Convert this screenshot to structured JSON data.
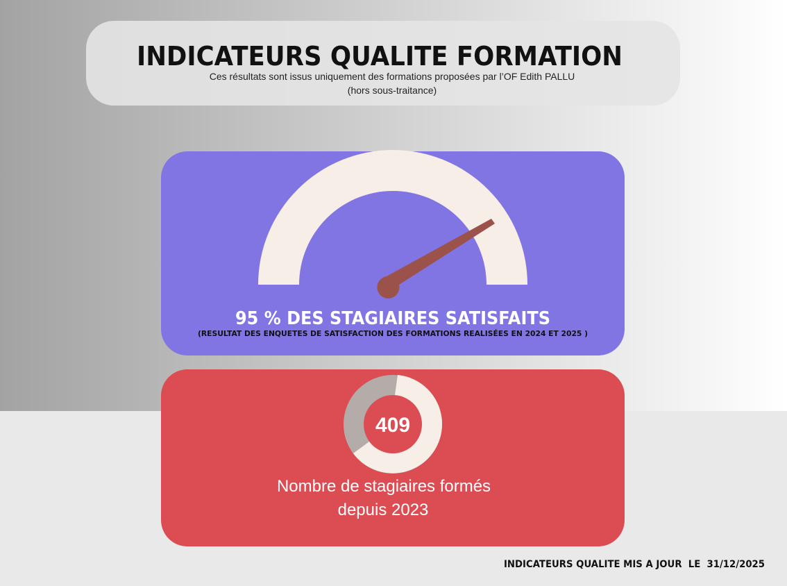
{
  "header": {
    "title": "INDICATEURS QUALITE FORMATION",
    "subtitle": [
      "Ces résultats sont issus uniquement des formations proposées par l’OF Edith PALLU",
      "(hors sous-traitance)"
    ]
  },
  "satisfaction": {
    "headline": "95 % DES STAGIAIRES SATISFAITS",
    "note": "(RESULTAT DES ENQUETES DE SATISFACTION DES FORMATIONS REALISÉES EN 2024 ET 2025 )"
  },
  "trainees": {
    "count": 409,
    "label": [
      "Nombre de stagiaires formés",
      "depuis 2023"
    ]
  },
  "footer": "INDICATEURS QUALITE MIS A JOUR  LE  31/12/2025"
}
